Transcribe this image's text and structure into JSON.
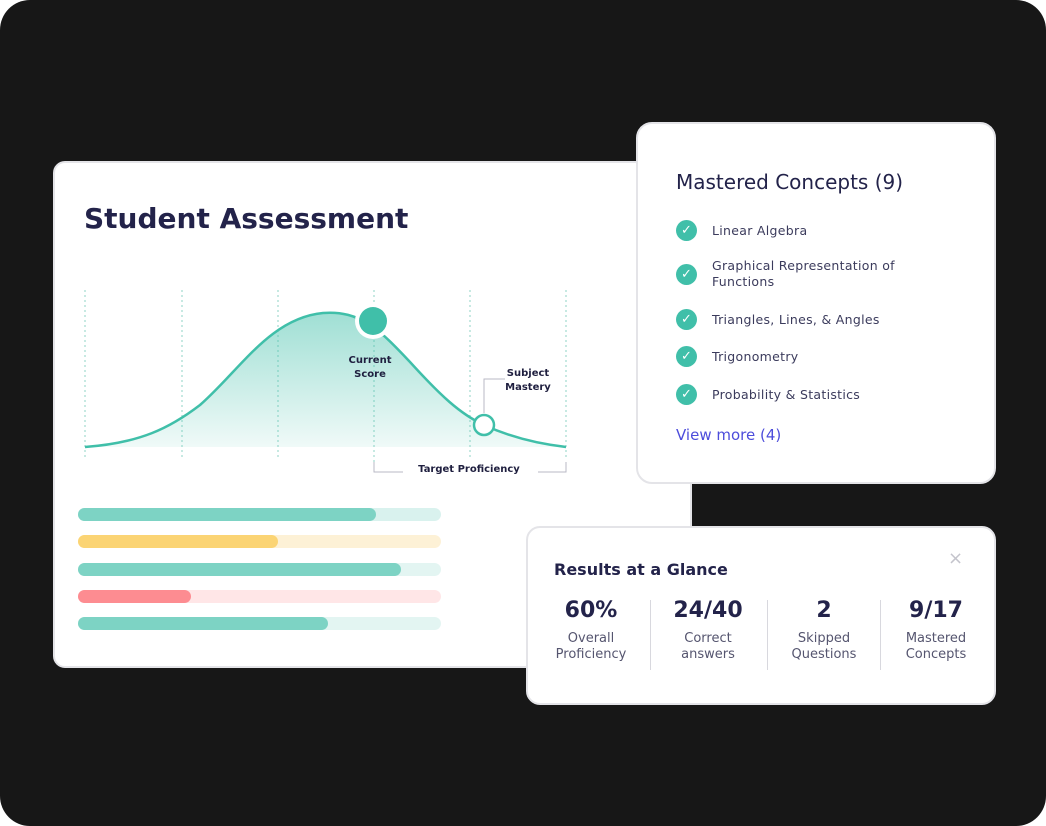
{
  "assessment": {
    "title": "Student Assessment",
    "chart": {
      "current_score_label": [
        "Current",
        "Score"
      ],
      "subject_mastery_label": [
        "Subject",
        "Mastery"
      ],
      "target_proficiency_label": "Target Proficiency"
    },
    "bars": [
      {
        "progress": 0.82,
        "fill": "#7dd3c4",
        "track": "#d9f2ee"
      },
      {
        "progress": 0.55,
        "fill": "#fbd474",
        "track": "#fdf1d6"
      },
      {
        "progress": 0.89,
        "fill": "#7dd3c4",
        "track": "#e3f5f2"
      },
      {
        "progress": 0.31,
        "fill": "#fd8c91",
        "track": "#ffe6e7"
      },
      {
        "progress": 0.69,
        "fill": "#7dd3c4",
        "track": "#e3f5f2"
      }
    ]
  },
  "mastered": {
    "title": "Mastered Concepts (9)",
    "items": [
      {
        "label": "Linear Algebra"
      },
      {
        "label": "Graphical Representation of Functions"
      },
      {
        "label": "Triangles, Lines, & Angles"
      },
      {
        "label": "Trigonometry"
      },
      {
        "label": "Probability & Statistics"
      }
    ],
    "view_more": "View more (4)"
  },
  "results": {
    "title": "Results at a Glance",
    "close_icon": "×",
    "stats": [
      {
        "value": "60%",
        "label": [
          "Overall",
          "Proficiency"
        ]
      },
      {
        "value": "24/40",
        "label": [
          "Correct",
          "answers"
        ]
      },
      {
        "value": "2",
        "label": [
          "Skipped",
          "Questions"
        ]
      },
      {
        "value": "9/17",
        "label": [
          "Mastered",
          "Concepts"
        ]
      }
    ]
  },
  "colors": {
    "accent": "#40bfa9",
    "text": "#23234a",
    "link": "#4d4ddb",
    "background": "#171717"
  }
}
